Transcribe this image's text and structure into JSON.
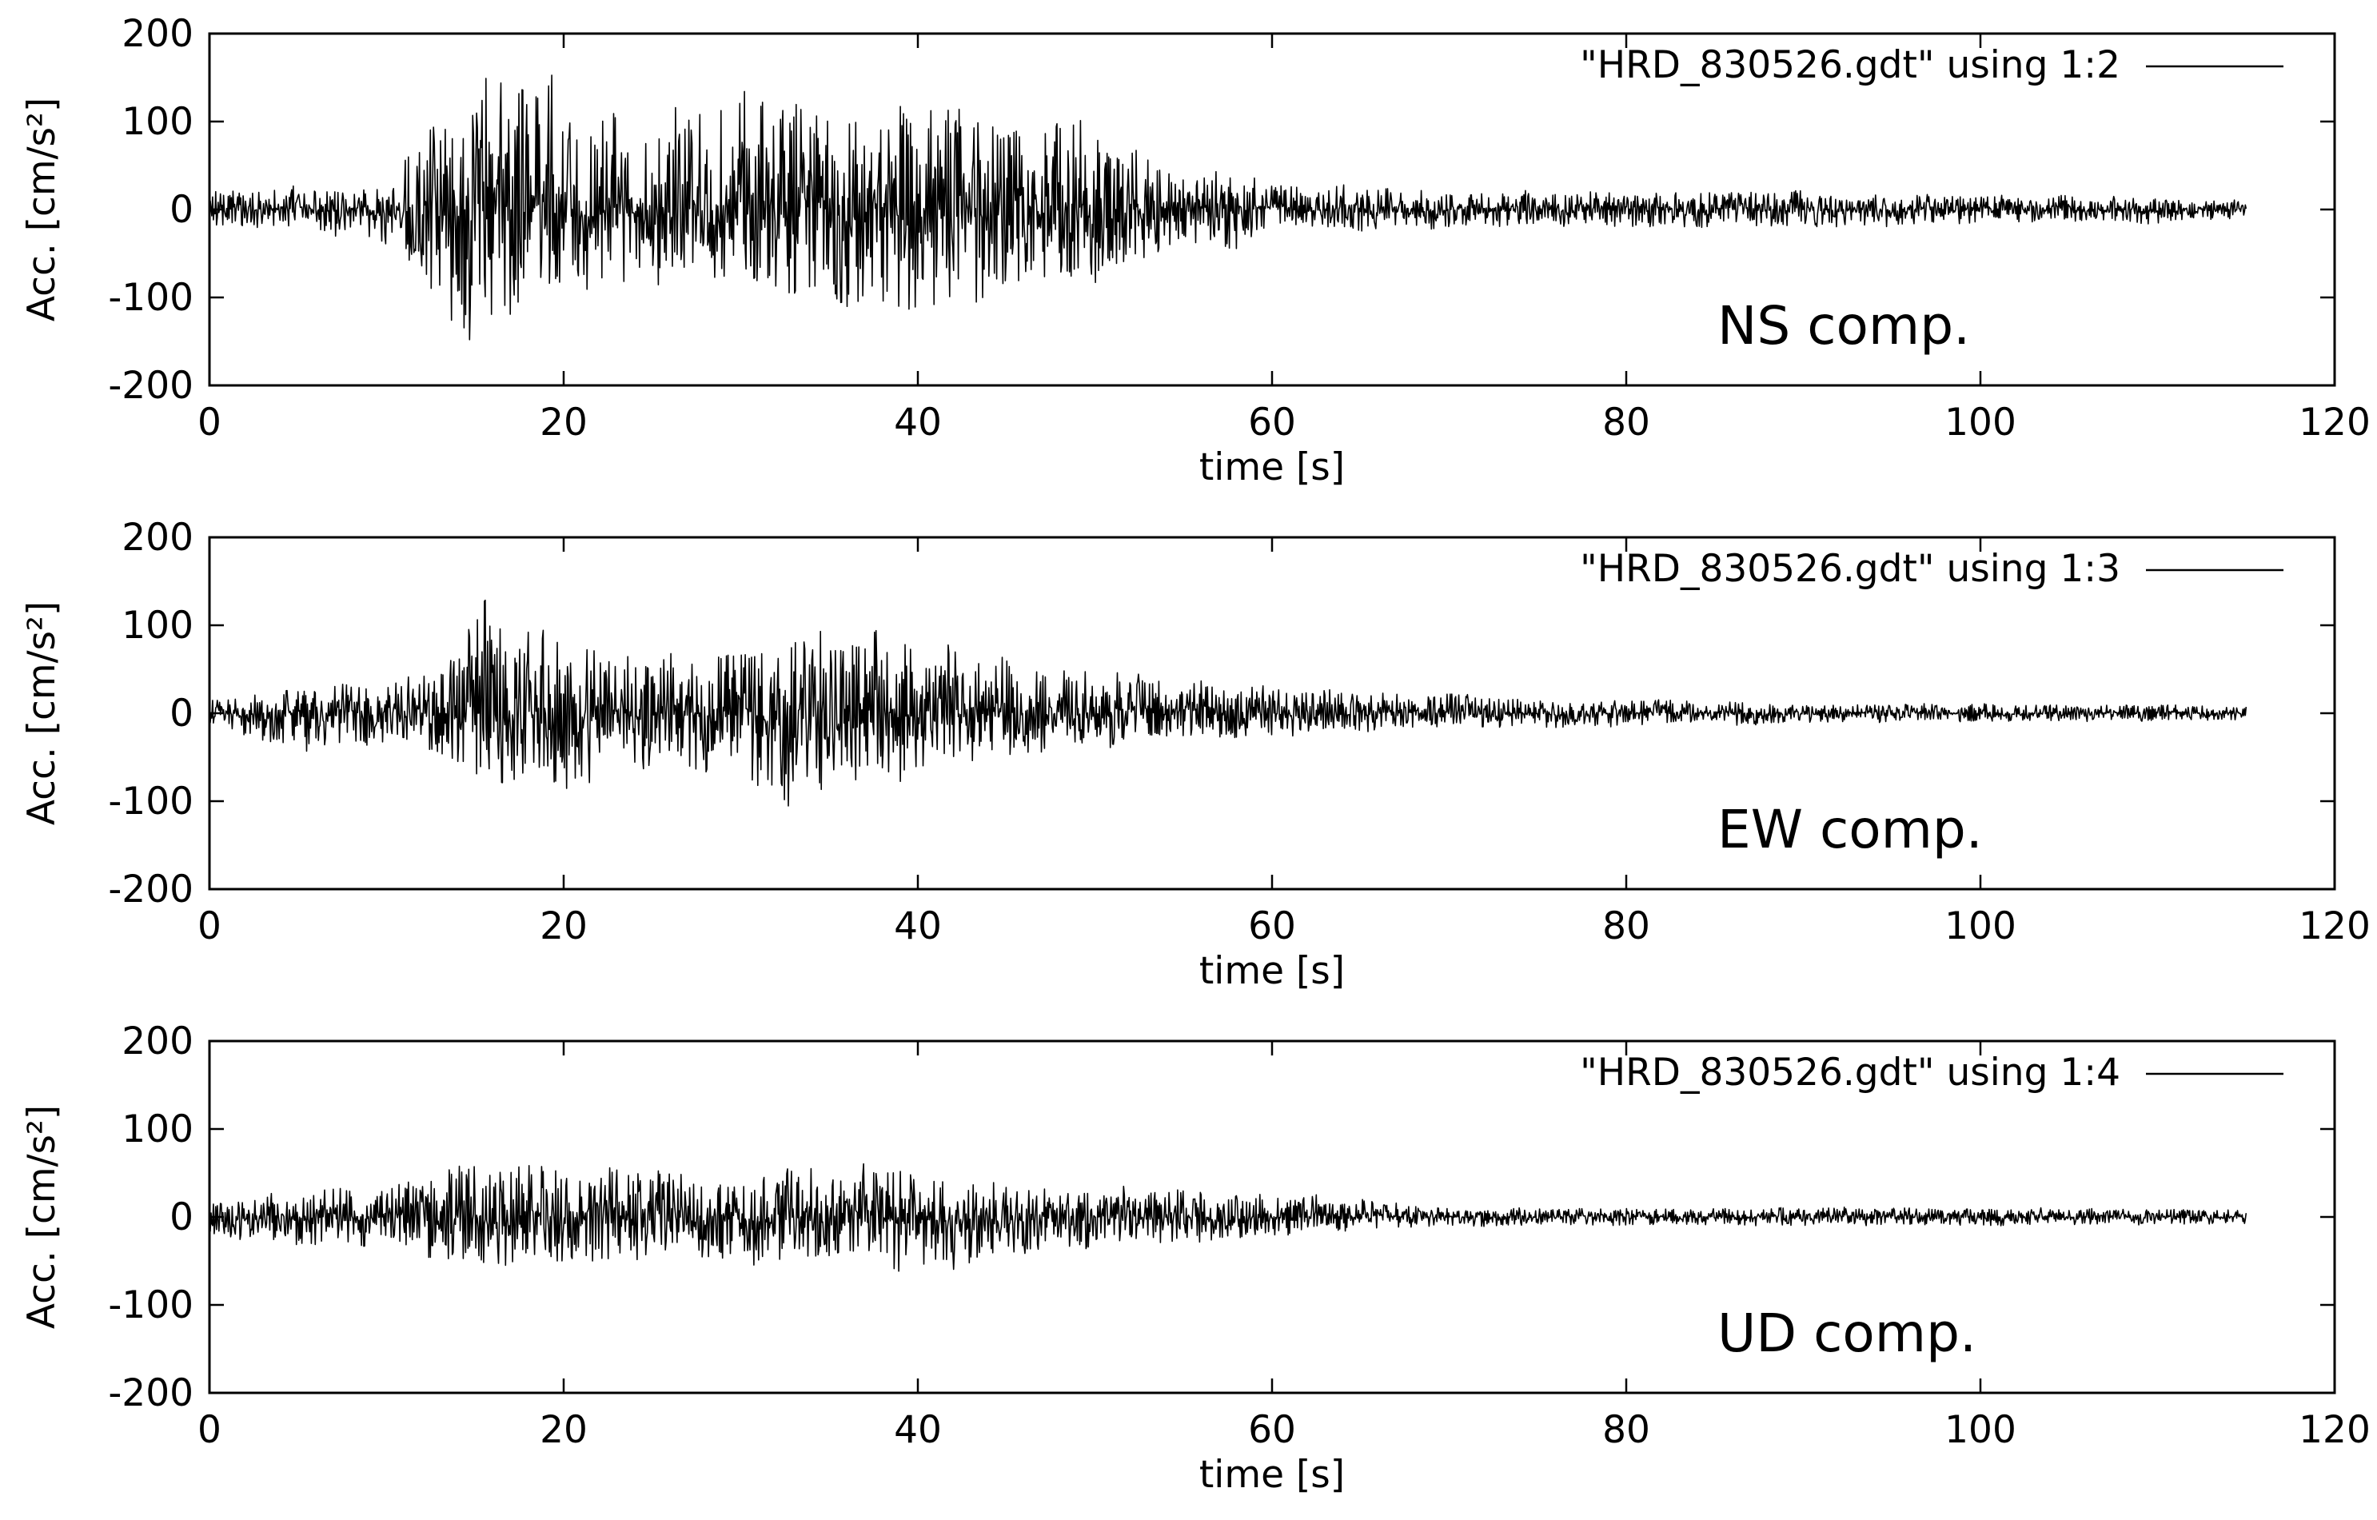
{
  "chart_data": [
    {
      "type": "line",
      "xlabel": "time [s]",
      "ylabel": "Acc. [cm/s²]",
      "xlim": [
        0,
        120
      ],
      "ylim": [
        -200,
        200
      ],
      "xticks": [
        0,
        20,
        40,
        60,
        80,
        100,
        120
      ],
      "yticks": [
        200,
        100,
        0,
        -100,
        -200
      ],
      "xtick_labels": [
        "0",
        "20",
        "40",
        "60",
        "80",
        "100",
        "120"
      ],
      "ytick_labels": [
        "200",
        "100",
        "0",
        "-100",
        "-200"
      ],
      "legend": "top-right",
      "grid": false,
      "annotation": "NS comp.",
      "series": [
        {
          "name": "\"HRD_830526.gdt\" using 1:2",
          "color": "#000000",
          "x_range": [
            0,
            115
          ],
          "envelope": {
            "x": [
              0,
              5,
              10,
              12,
              15,
              18,
              20,
              22,
              25,
              28,
              30,
              35,
              38,
              40,
              42,
              45,
              48,
              50,
              55,
              58,
              60,
              65,
              70,
              80,
              90,
              100,
              110,
              115
            ],
            "max": [
              20,
              25,
              30,
              90,
              130,
              145,
              140,
              110,
              100,
              130,
              120,
              120,
              140,
              120,
              120,
              110,
              100,
              95,
              40,
              50,
              25,
              30,
              20,
              20,
              20,
              15,
              15,
              10
            ],
            "min": [
              -20,
              -25,
              -35,
              -80,
              -160,
              -100,
              -100,
              -90,
              -80,
              -80,
              -90,
              -100,
              -110,
              -120,
              -110,
              -100,
              -90,
              -80,
              -40,
              -45,
              -20,
              -25,
              -20,
              -20,
              -20,
              -15,
              -15,
              -10
            ]
          }
        }
      ]
    },
    {
      "type": "line",
      "xlabel": "time [s]",
      "ylabel": "Acc. [cm/s²]",
      "xlim": [
        0,
        120
      ],
      "ylim": [
        -200,
        200
      ],
      "xticks": [
        0,
        20,
        40,
        60,
        80,
        100,
        120
      ],
      "yticks": [
        200,
        100,
        0,
        -100,
        -200
      ],
      "xtick_labels": [
        "0",
        "20",
        "40",
        "60",
        "80",
        "100",
        "120"
      ],
      "ytick_labels": [
        "200",
        "100",
        "0",
        "-100",
        "-200"
      ],
      "legend": "top-right",
      "grid": false,
      "annotation": "EW comp.",
      "series": [
        {
          "name": "\"HRD_830526.gdt\" using 1:3",
          "color": "#000000",
          "x_range": [
            0,
            115
          ],
          "envelope": {
            "x": [
              0,
              5,
              10,
              13,
              15,
              16,
              17,
              20,
              25,
              30,
              33,
              35,
              38,
              40,
              45,
              50,
              55,
              60,
              70,
              80,
              85,
              90,
              100,
              115
            ],
            "max": [
              20,
              30,
              35,
              50,
              100,
              140,
              110,
              90,
              60,
              70,
              100,
              100,
              90,
              80,
              60,
              50,
              35,
              30,
              20,
              15,
              15,
              10,
              10,
              8
            ],
            "min": [
              -20,
              -40,
              -35,
              -50,
              -80,
              -85,
              -70,
              -85,
              -60,
              -70,
              -105,
              -80,
              -80,
              -70,
              -50,
              -40,
              -30,
              -25,
              -15,
              -15,
              -15,
              -10,
              -10,
              -8
            ]
          }
        }
      ]
    },
    {
      "type": "line",
      "xlabel": "time [s]",
      "ylabel": "Acc. [cm/s²]",
      "xlim": [
        0,
        120
      ],
      "ylim": [
        -200,
        200
      ],
      "xticks": [
        0,
        20,
        40,
        60,
        80,
        100,
        120
      ],
      "yticks": [
        200,
        100,
        0,
        -100,
        -200
      ],
      "xtick_labels": [
        "0",
        "20",
        "40",
        "60",
        "80",
        "100",
        "120"
      ],
      "ytick_labels": [
        "200",
        "100",
        "0",
        "-100",
        "-200"
      ],
      "legend": "top-right",
      "grid": false,
      "annotation": "UD comp.",
      "series": [
        {
          "name": "\"HRD_830526.gdt\" using 1:4",
          "color": "#000000",
          "x_range": [
            0,
            115
          ],
          "envelope": {
            "x": [
              0,
              5,
              10,
              14,
              18,
              20,
              22,
              25,
              30,
              33,
              35,
              38,
              40,
              45,
              50,
              55,
              60,
              65,
              70,
              80,
              90,
              100,
              115
            ],
            "max": [
              20,
              30,
              35,
              60,
              60,
              60,
              55,
              50,
              50,
              60,
              50,
              60,
              50,
              40,
              35,
              30,
              25,
              20,
              10,
              10,
              10,
              10,
              8
            ],
            "min": [
              -20,
              -30,
              -35,
              -50,
              -50,
              -50,
              -60,
              -45,
              -50,
              -50,
              -45,
              -55,
              -65,
              -40,
              -35,
              -30,
              -20,
              -15,
              -10,
              -10,
              -10,
              -10,
              -8
            ]
          }
        }
      ]
    }
  ]
}
